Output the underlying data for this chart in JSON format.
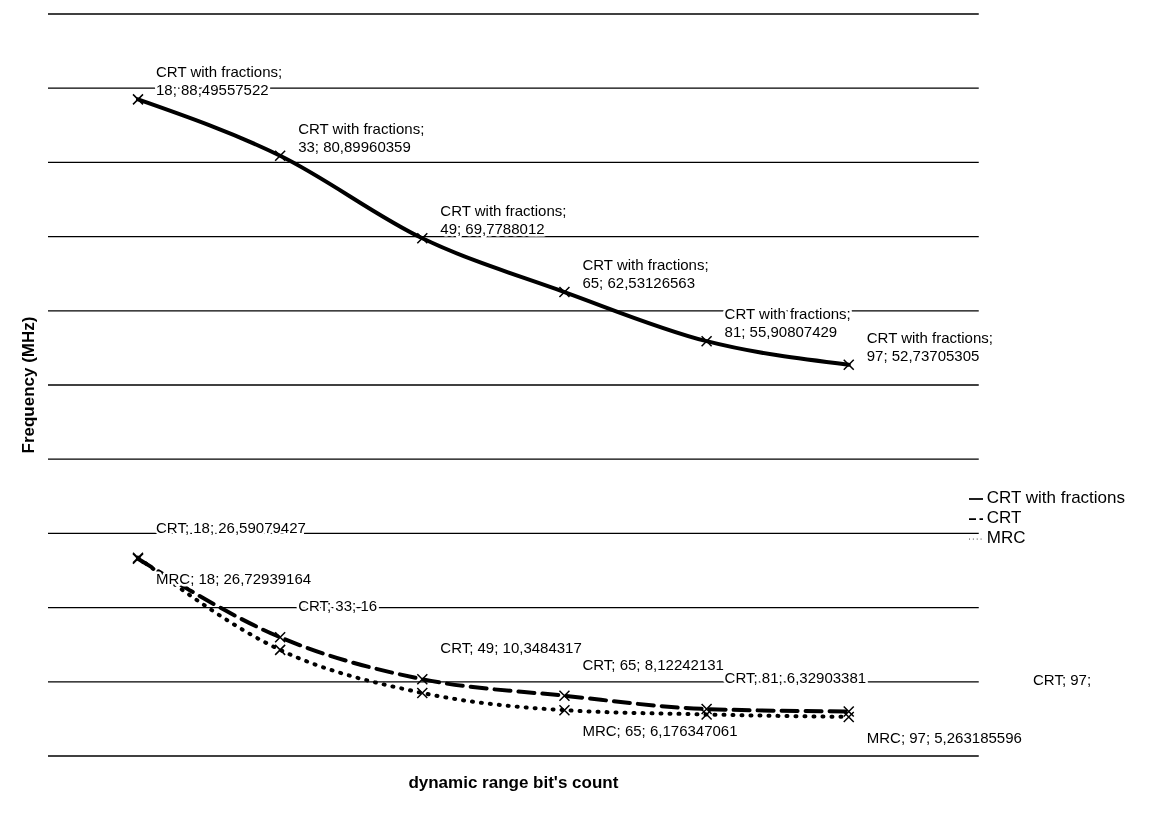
{
  "chart_data": {
    "type": "line",
    "xlabel": "dynamic range bit's count",
    "ylabel": "Frequency (MHz)",
    "categories": [
      null,
      null,
      null,
      null,
      null,
      null
    ],
    "ylim": [
      0,
      100
    ],
    "yticks": [
      {
        "value": 0,
        "label": null
      },
      {
        "value": 10,
        "label": null
      },
      {
        "value": 20,
        "label": null
      },
      {
        "value": 30,
        "label": null
      },
      {
        "value": 40,
        "label": null
      },
      {
        "value": 50,
        "label": null
      },
      {
        "value": 60,
        "label": null
      },
      {
        "value": 70,
        "label": null
      },
      {
        "value": 80,
        "label": null
      },
      {
        "value": 90,
        "label": null
      },
      {
        "value": 100,
        "label": null
      }
    ],
    "annotations": [
      "CRT; 97;"
    ],
    "grid": "y",
    "legend": "right",
    "marker": "cross",
    "series": [
      {
        "name": "CRT with fractions",
        "color": "#000000",
        "line_style": "solid",
        "values": [
          88.49557522,
          80.89960359,
          69.7788012,
          62.53126563,
          55.90807429,
          52.73705305
        ],
        "value_labels": [
          "CRT with fractions; 18; 88,49557522",
          "CRT with fractions; 33; 80,89960359",
          "CRT with fractions; 49; 69,7788012",
          "CRT with fractions; 65; 62,53126563",
          "CRT with fractions; 81; 55,90807429",
          "CRT with fractions; 97; 52,73705305"
        ]
      },
      {
        "name": "CRT",
        "color": "#000000",
        "line_style": "dashed",
        "values": [
          26.59079427,
          16,
          10.3484317,
          8.12242131,
          6.32903381,
          6.0
        ],
        "value_labels": [
          "CRT; 18; 26,59079427",
          "CRT; 33; 16",
          "CRT; 49; 10,3484317",
          "CRT; 65; 8,12242131",
          "CRT; 81; 6,32903381",
          null
        ]
      },
      {
        "name": "MRC",
        "color": "#000000",
        "line_style": "dotted",
        "values": [
          26.72939164,
          14.3,
          8.5,
          6.176347061,
          5.6,
          5.263185596
        ],
        "value_labels": [
          "MRC; 18; 26,72939164",
          null,
          null,
          "MRC; 65; 6,176347061",
          null,
          "MRC; 97; 5,263185596"
        ]
      }
    ]
  }
}
